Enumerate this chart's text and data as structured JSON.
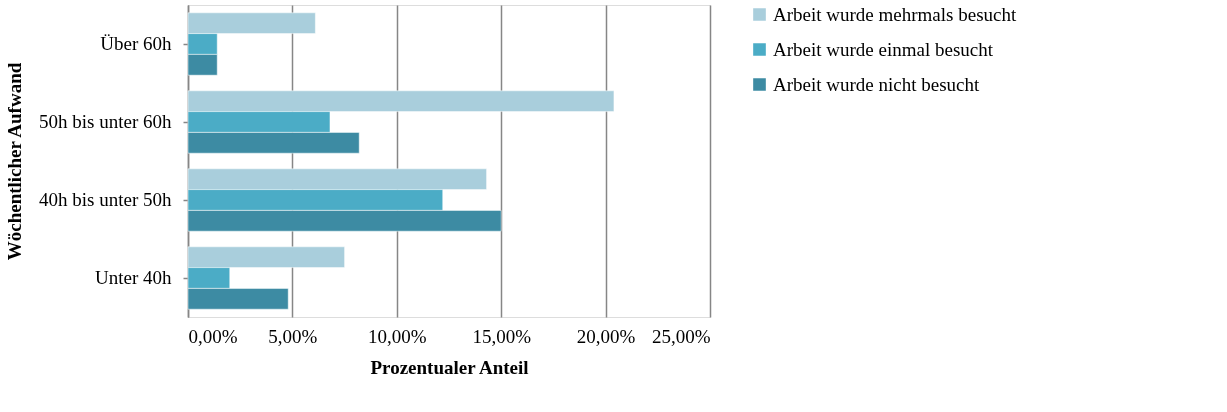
{
  "chart_data": {
    "type": "bar",
    "orientation": "horizontal",
    "categories": [
      "Über 60h",
      "50h bis unter 60h",
      "40h bis unter 50h",
      "Unter 40h"
    ],
    "series": [
      {
        "name": "Arbeit wurde mehrmals besucht",
        "color": "#a9cedc",
        "values": [
          6.1,
          20.4,
          14.3,
          7.5
        ]
      },
      {
        "name": "Arbeit wurde einmal besucht",
        "color": "#4bacc6",
        "values": [
          1.4,
          6.8,
          12.2,
          2.0
        ]
      },
      {
        "name": "Arbeit wurde nicht besucht",
        "color": "#3d8ba3",
        "values": [
          1.4,
          8.2,
          15.0,
          4.8
        ]
      }
    ],
    "xlabel": "Prozentualer Anteil",
    "ylabel": "Wöchentlicher Aufwand",
    "xlim": [
      0,
      25
    ],
    "xticks": [
      {
        "value": 0,
        "label": "0,00%"
      },
      {
        "value": 5,
        "label": "5,00%"
      },
      {
        "value": 10,
        "label": "10,00%"
      },
      {
        "value": 15,
        "label": "15,00%"
      },
      {
        "value": 20,
        "label": "20,00%"
      },
      {
        "value": 25,
        "label": "25,00%"
      }
    ],
    "grid": "x",
    "legend": "right"
  }
}
